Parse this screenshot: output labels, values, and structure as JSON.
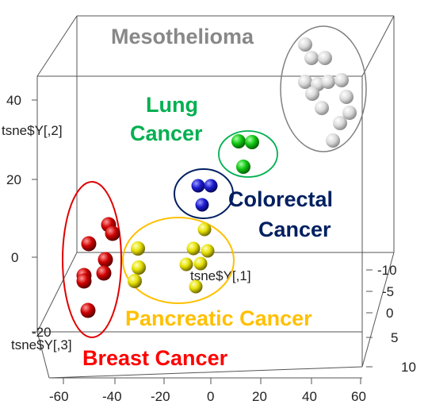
{
  "chart_data": {
    "type": "scatter",
    "title": "",
    "axes": {
      "x": {
        "label": "tsne$Y[,1]",
        "ticks": [
          "-60",
          "-40",
          "-20",
          "0",
          "20",
          "40",
          "60"
        ]
      },
      "y": {
        "label": "tsne$Y[,2]",
        "ticks": [
          "40",
          "20",
          "0",
          "-20"
        ]
      },
      "z": {
        "label": "tsne$Y[,3]",
        "ticks": [
          "-10",
          "-5",
          "0",
          "5",
          "10"
        ]
      }
    },
    "clusters": [
      {
        "name": "Mesothelioma",
        "color": "#888888",
        "ring": "#808080",
        "point_color": "#dcdcdc"
      },
      {
        "name": "Lung Cancer",
        "lines": [
          "Lung",
          "Cancer"
        ],
        "color": "#00b050",
        "ring": "#00b050",
        "point_color": "#10c810"
      },
      {
        "name": "Colorectal Cancer",
        "lines": [
          "Colorectal",
          "Cancer"
        ],
        "color": "#002060",
        "ring": "#002060",
        "point_color": "#1c1cd0"
      },
      {
        "name": "Pancreatic Cancer",
        "color": "#ffc000",
        "ring": "#ffc000",
        "point_color": "#e8e000"
      },
      {
        "name": "Breast Cancer",
        "color": "#ff0000",
        "ring": "#e00000",
        "point_color": "#d00000"
      }
    ]
  }
}
